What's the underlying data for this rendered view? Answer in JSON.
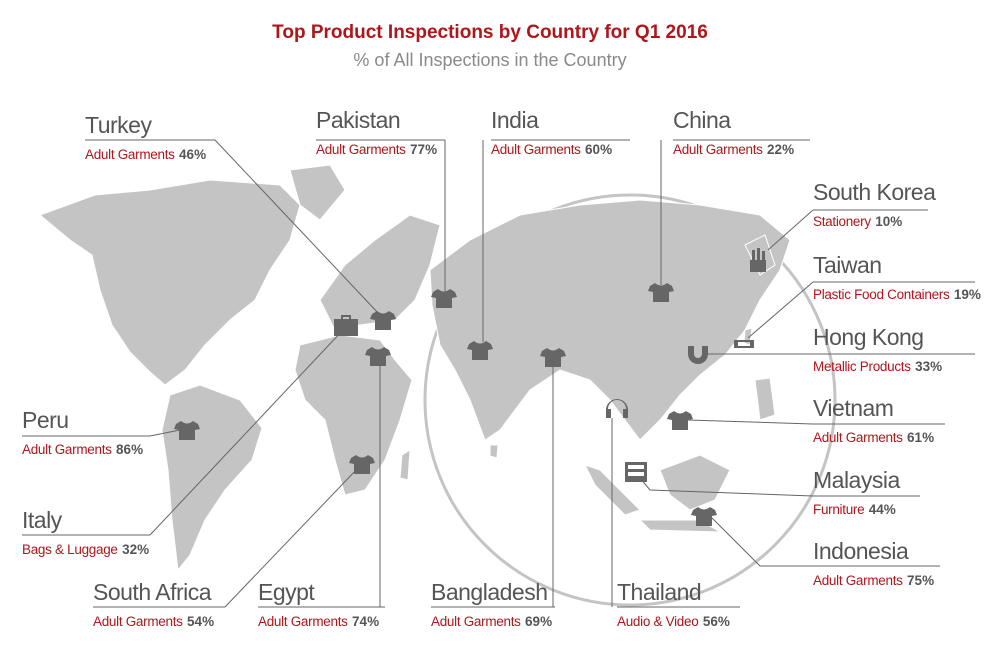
{
  "header": {
    "title": "Top Product Inspections by Country for Q1 2016",
    "subtitle": "% of All Inspections in the Country"
  },
  "countries": [
    {
      "name": "Turkey",
      "product": "Adult Garments",
      "share": "46%"
    },
    {
      "name": "Pakistan",
      "product": "Adult Garments",
      "share": "77%"
    },
    {
      "name": "India",
      "product": "Adult Garments",
      "share": "60%"
    },
    {
      "name": "China",
      "product": "Adult Garments",
      "share": "22%"
    },
    {
      "name": "South Korea",
      "product": "Stationery",
      "share": "10%"
    },
    {
      "name": "Taiwan",
      "product": "Plastic Food Containers",
      "share": "19%"
    },
    {
      "name": "Hong Kong",
      "product": "Metallic Products",
      "share": "33%"
    },
    {
      "name": "Vietnam",
      "product": "Adult Garments",
      "share": "61%"
    },
    {
      "name": "Malaysia",
      "product": "Furniture",
      "share": "44%"
    },
    {
      "name": "Indonesia",
      "product": "Adult Garments",
      "share": "75%"
    },
    {
      "name": "Peru",
      "product": "Adult Garments",
      "share": "86%"
    },
    {
      "name": "Italy",
      "product": "Bags & Luggage",
      "share": "32%"
    },
    {
      "name": "South Africa",
      "product": "Adult Garments",
      "share": "54%"
    },
    {
      "name": "Egypt",
      "product": "Adult Garments",
      "share": "74%"
    },
    {
      "name": "Bangladesh",
      "product": "Adult Garments",
      "share": "69%"
    },
    {
      "name": "Thailand",
      "product": "Audio & Video",
      "share": "56%"
    }
  ]
}
